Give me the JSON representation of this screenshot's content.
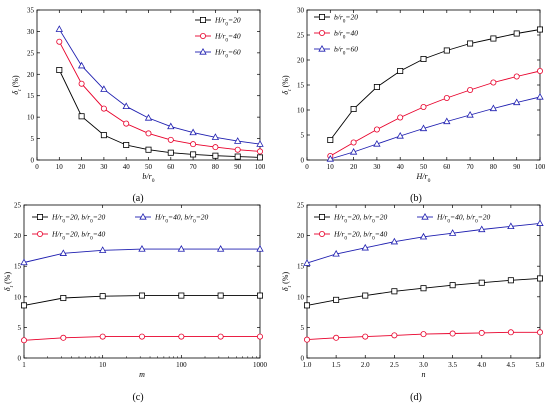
{
  "chart_data": [
    {
      "type": "line",
      "panel_label": "(a)",
      "xlabel": "b/r0",
      "ylabel": "δt (%)",
      "xlim": [
        0,
        100
      ],
      "ylim": [
        0,
        35
      ],
      "xscale": "linear",
      "xticks": [
        "0",
        "10",
        "20",
        "30",
        "40",
        "50",
        "60",
        "70",
        "80",
        "90",
        "100"
      ],
      "yticks": [
        "0",
        "5",
        "10",
        "15",
        "20",
        "25",
        "30",
        "35"
      ],
      "legend_position": "top-right",
      "series": [
        {
          "name": "H/r0=20",
          "color": "#000000",
          "marker": "square",
          "x": [
            10,
            20,
            30,
            40,
            50,
            60,
            70,
            80,
            90,
            100
          ],
          "y": [
            21.0,
            10.2,
            5.8,
            3.5,
            2.4,
            1.7,
            1.3,
            1.0,
            0.8,
            0.6
          ]
        },
        {
          "name": "H/r0=40",
          "color": "#e8002b",
          "marker": "circle",
          "x": [
            10,
            20,
            30,
            40,
            50,
            60,
            70,
            80,
            90,
            100
          ],
          "y": [
            27.6,
            17.8,
            12.0,
            8.5,
            6.2,
            4.7,
            3.7,
            3.0,
            2.4,
            2.0
          ]
        },
        {
          "name": "H/r0=60",
          "color": "#1f1fb0",
          "marker": "triangle",
          "x": [
            10,
            20,
            30,
            40,
            50,
            60,
            70,
            80,
            90,
            100
          ],
          "y": [
            30.5,
            22.0,
            16.5,
            12.5,
            9.8,
            7.8,
            6.4,
            5.3,
            4.4,
            3.7
          ]
        }
      ]
    },
    {
      "type": "line",
      "panel_label": "(b)",
      "xlabel": "H/r0",
      "ylabel": "δt (%)",
      "xlim": [
        0,
        100
      ],
      "ylim": [
        0,
        30
      ],
      "xscale": "linear",
      "xticks": [
        "0",
        "10",
        "20",
        "30",
        "40",
        "50",
        "60",
        "70",
        "80",
        "90",
        "100"
      ],
      "yticks": [
        "0",
        "5",
        "10",
        "15",
        "20",
        "25",
        "30"
      ],
      "legend_position": "top-left",
      "series": [
        {
          "name": "b/r0=20",
          "color": "#000000",
          "marker": "square",
          "x": [
            10,
            20,
            30,
            40,
            50,
            60,
            70,
            80,
            90,
            100
          ],
          "y": [
            4.0,
            10.2,
            14.6,
            17.8,
            20.2,
            21.9,
            23.3,
            24.3,
            25.3,
            26.1
          ]
        },
        {
          "name": "b/r0=40",
          "color": "#e8002b",
          "marker": "circle",
          "x": [
            10,
            20,
            30,
            40,
            50,
            60,
            70,
            80,
            90,
            100
          ],
          "y": [
            0.8,
            3.5,
            6.1,
            8.5,
            10.6,
            12.4,
            14.0,
            15.5,
            16.7,
            17.8
          ]
        },
        {
          "name": "b/r0=60",
          "color": "#1f1fb0",
          "marker": "triangle",
          "x": [
            10,
            20,
            30,
            40,
            50,
            60,
            70,
            80,
            90,
            100
          ],
          "y": [
            0.2,
            1.6,
            3.2,
            4.8,
            6.3,
            7.7,
            9.0,
            10.3,
            11.5,
            12.6
          ]
        }
      ]
    },
    {
      "type": "line",
      "panel_label": "(c)",
      "xlabel": "m",
      "ylabel": "δt (%)",
      "xlim": [
        1,
        1000
      ],
      "ylim": [
        0,
        25
      ],
      "xscale": "log",
      "xticks": [
        "1",
        "10",
        "100",
        "1000"
      ],
      "yticks": [
        "0",
        "5",
        "10",
        "15",
        "20",
        "25"
      ],
      "legend_position": "top",
      "series": [
        {
          "name": "H/r0=20, b/r0=20",
          "color": "#000000",
          "marker": "square",
          "x": [
            1,
            3.16,
            10,
            31.6,
            100,
            316,
            1000
          ],
          "y": [
            8.6,
            9.8,
            10.1,
            10.2,
            10.2,
            10.2,
            10.2
          ]
        },
        {
          "name": "H/r0=40, b/r0=20",
          "color": "#1f1fb0",
          "marker": "triangle",
          "x": [
            1,
            3.16,
            10,
            31.6,
            100,
            316,
            1000
          ],
          "y": [
            15.6,
            17.1,
            17.6,
            17.8,
            17.8,
            17.8,
            17.8
          ]
        },
        {
          "name": "H/r0=20, b/r0=40",
          "color": "#e8002b",
          "marker": "circle",
          "x": [
            1,
            3.16,
            10,
            31.6,
            100,
            316,
            1000
          ],
          "y": [
            2.9,
            3.3,
            3.5,
            3.5,
            3.5,
            3.5,
            3.5
          ]
        }
      ]
    },
    {
      "type": "line",
      "panel_label": "(d)",
      "xlabel": "n",
      "ylabel": "δt (%)",
      "xlim": [
        1.0,
        5.0
      ],
      "ylim": [
        0,
        25
      ],
      "xscale": "linear",
      "xticks": [
        "1.0",
        "1.5",
        "2.0",
        "2.5",
        "3.0",
        "3.5",
        "4.0",
        "4.5",
        "5.0"
      ],
      "yticks": [
        "0",
        "5",
        "10",
        "15",
        "20",
        "25"
      ],
      "legend_position": "top",
      "series": [
        {
          "name": "H/r0=20, b/r0=20",
          "color": "#000000",
          "marker": "square",
          "x": [
            1.0,
            1.5,
            2.0,
            2.5,
            3.0,
            3.5,
            4.0,
            4.5,
            5.0
          ],
          "y": [
            8.6,
            9.5,
            10.2,
            10.9,
            11.4,
            11.9,
            12.3,
            12.7,
            13.0
          ]
        },
        {
          "name": "H/r0=40, b/r0=20",
          "color": "#1f1fb0",
          "marker": "triangle",
          "x": [
            1.0,
            1.5,
            2.0,
            2.5,
            3.0,
            3.5,
            4.0,
            4.5,
            5.0
          ],
          "y": [
            15.5,
            17.0,
            18.0,
            19.0,
            19.8,
            20.4,
            21.0,
            21.5,
            22.0
          ]
        },
        {
          "name": "H/r0=20, b/r0=40",
          "color": "#e8002b",
          "marker": "circle",
          "x": [
            1.0,
            1.5,
            2.0,
            2.5,
            3.0,
            3.5,
            4.0,
            4.5,
            5.0
          ],
          "y": [
            3.0,
            3.3,
            3.5,
            3.7,
            3.9,
            4.0,
            4.1,
            4.2,
            4.2
          ]
        }
      ]
    }
  ]
}
